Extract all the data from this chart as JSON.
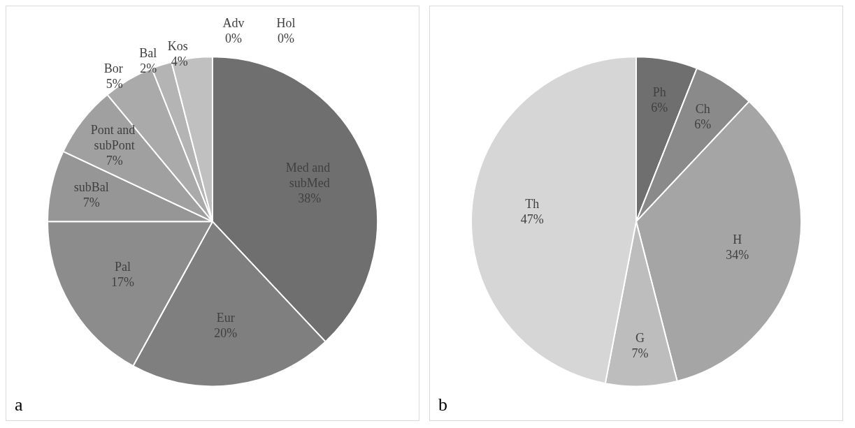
{
  "chart_data": [
    {
      "type": "pie",
      "categories": [
        "Med and subMed",
        "Eur",
        "Pal",
        "subBal",
        "Pont and subPont",
        "Bor",
        "Bal",
        "Kos",
        "Adv",
        "Hol"
      ],
      "values": [
        38,
        20,
        17,
        7,
        7,
        5,
        2,
        4,
        0,
        0
      ],
      "value_labels": [
        "38%",
        "20%",
        "17%",
        "7%",
        "7%",
        "5%",
        "2%",
        "4%",
        "0%",
        "0%"
      ],
      "colors": [
        "#6f6f6f",
        "#7f7f7f",
        "#8c8c8c",
        "#969696",
        "#a0a0a0",
        "#aaaaaa",
        "#b4b4b4",
        "#c0c0c0",
        "#cccccc",
        "#d9d9d9"
      ],
      "annotations": [
        "a"
      ]
    },
    {
      "type": "pie",
      "categories": [
        "Ph",
        "Ch",
        "H",
        "G",
        "Th"
      ],
      "values": [
        6,
        6,
        34,
        7,
        47
      ],
      "value_labels": [
        "6%",
        "6%",
        "34%",
        "7%",
        "47%"
      ],
      "colors": [
        "#6f6f6f",
        "#8a8a8a",
        "#a5a5a5",
        "#bdbdbd",
        "#d6d6d6"
      ],
      "annotations": [
        "b"
      ]
    }
  ]
}
